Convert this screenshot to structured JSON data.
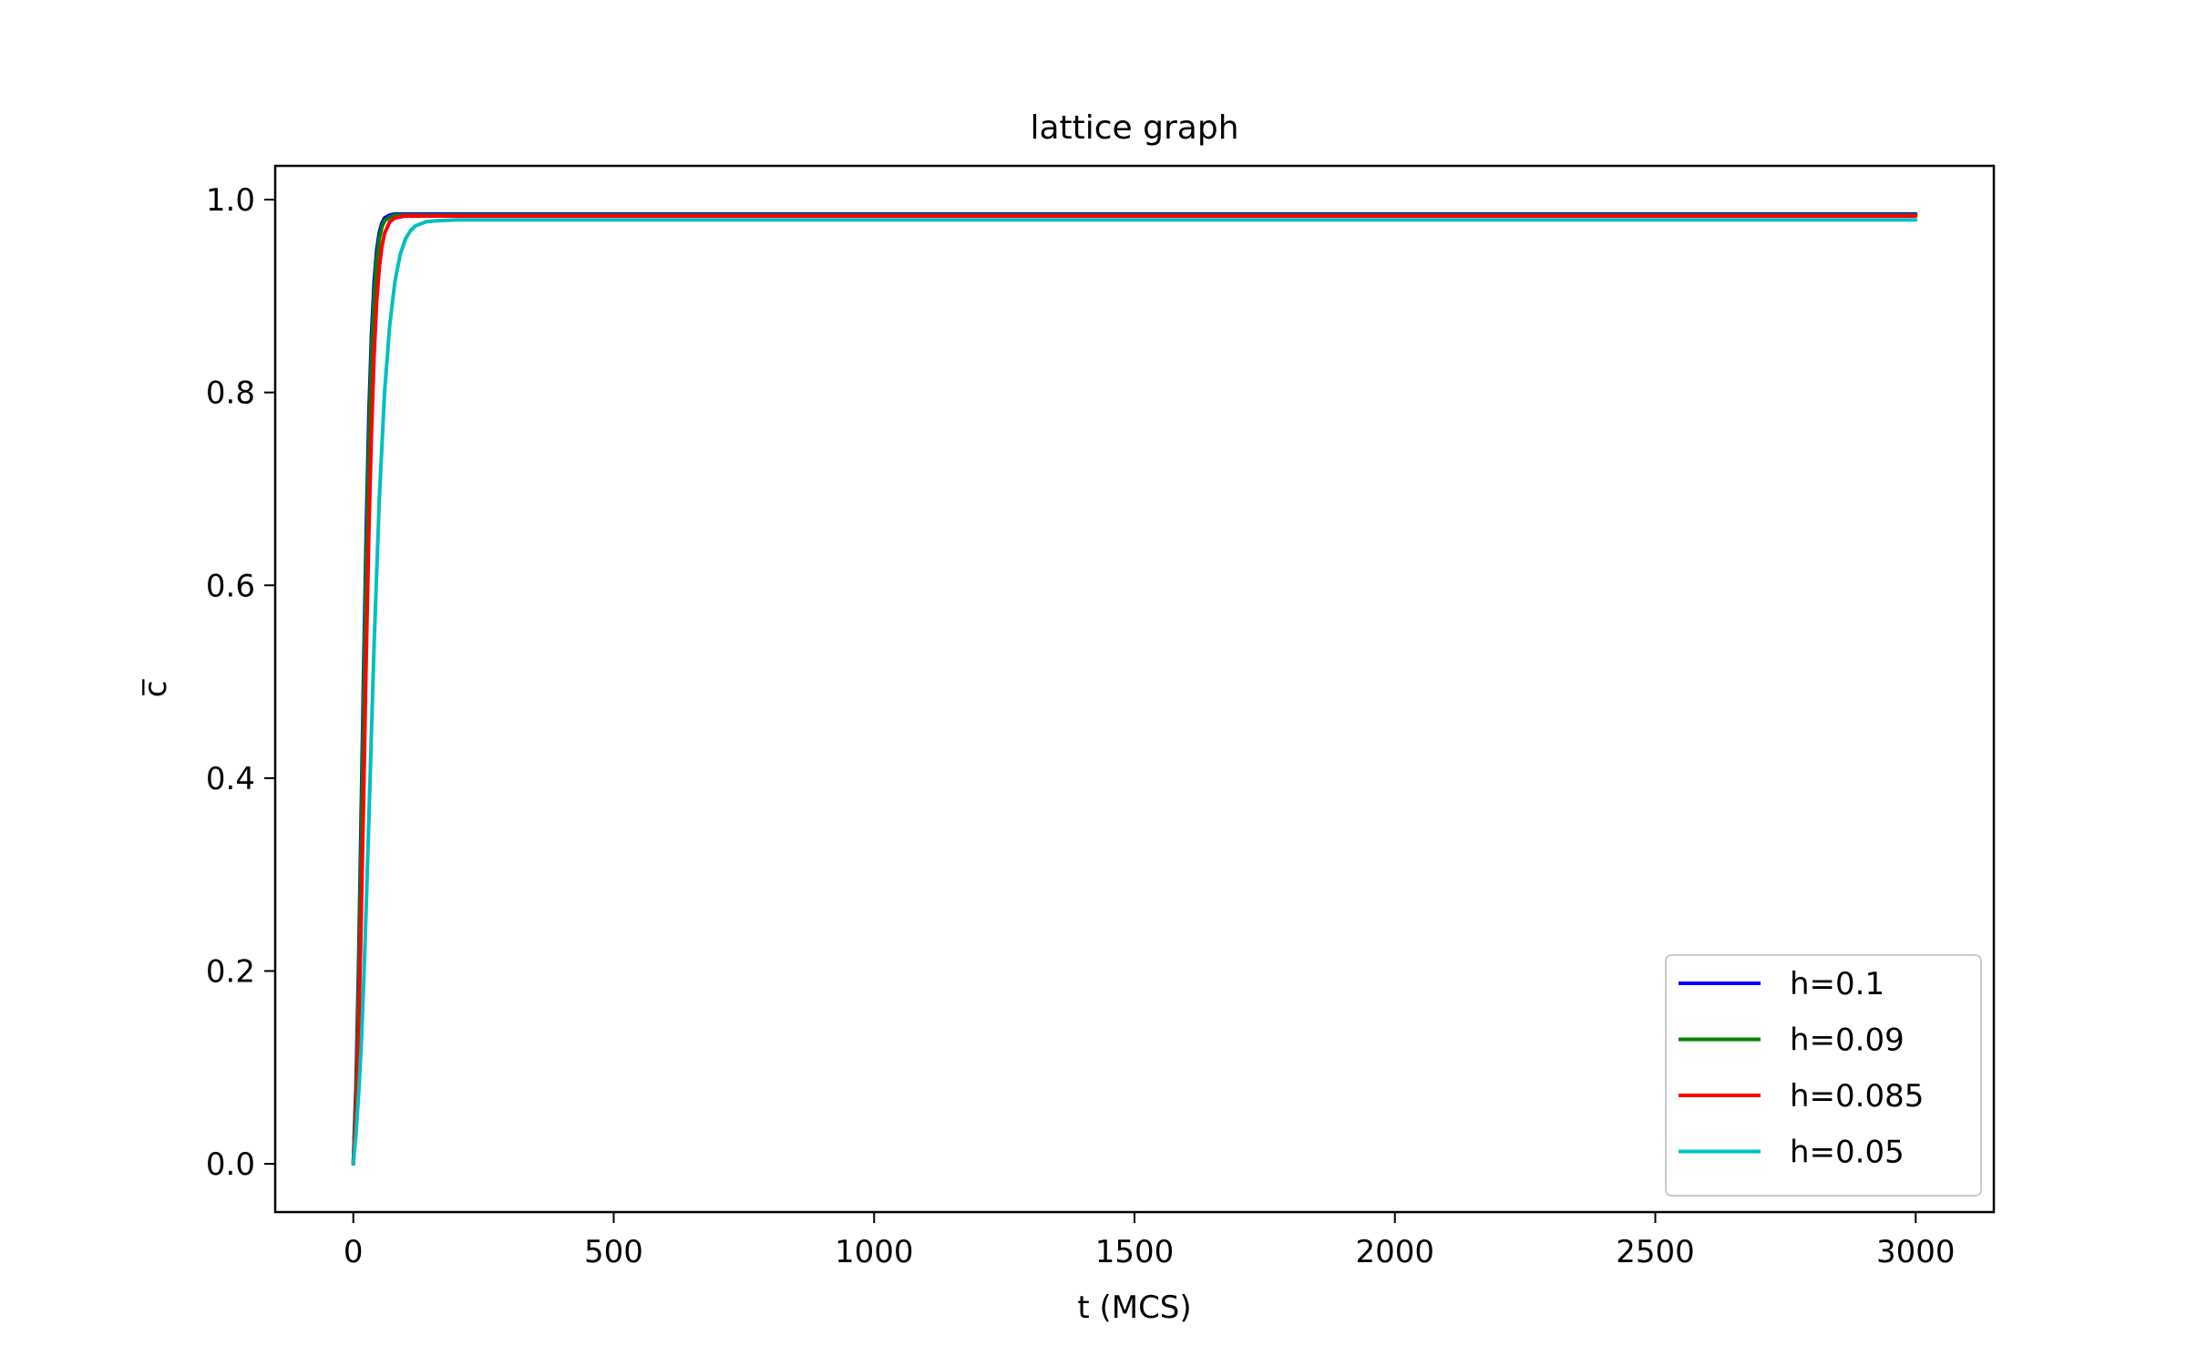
{
  "chart_data": {
    "type": "line",
    "title": "lattice graph",
    "xlabel": "t (MCS)",
    "ylabel": "c̅",
    "xlim": [
      -150,
      3150
    ],
    "ylim": [
      -0.05,
      1.035
    ],
    "xticks": [
      0,
      500,
      1000,
      1500,
      2000,
      2500,
      3000
    ],
    "yticks": [
      0.0,
      0.2,
      0.4,
      0.6,
      0.8,
      1.0
    ],
    "xtick_labels": [
      "0",
      "500",
      "1000",
      "1500",
      "2000",
      "2500",
      "3000"
    ],
    "ytick_labels": [
      "0.0",
      "0.2",
      "0.4",
      "0.6",
      "0.8",
      "1.0"
    ],
    "grid": false,
    "legend_position": "lower-right",
    "series": [
      {
        "name": "h=0.1",
        "color": "#0000ff",
        "x": [
          0,
          5,
          10,
          15,
          20,
          25,
          30,
          35,
          40,
          45,
          50,
          55,
          60,
          70,
          80,
          100,
          150,
          200,
          500,
          1000,
          1500,
          2000,
          2500,
          3000
        ],
        "y": [
          0.0,
          0.08,
          0.2,
          0.36,
          0.52,
          0.66,
          0.78,
          0.86,
          0.915,
          0.948,
          0.966,
          0.976,
          0.981,
          0.984,
          0.985,
          0.985,
          0.985,
          0.985,
          0.985,
          0.985,
          0.985,
          0.985,
          0.985,
          0.985
        ]
      },
      {
        "name": "h=0.09",
        "color": "#008000",
        "x": [
          0,
          5,
          10,
          15,
          20,
          25,
          30,
          35,
          40,
          45,
          50,
          55,
          60,
          70,
          80,
          100,
          150,
          200,
          500,
          1000,
          1500,
          2000,
          2500,
          3000
        ],
        "y": [
          0.0,
          0.07,
          0.18,
          0.33,
          0.49,
          0.63,
          0.75,
          0.84,
          0.9,
          0.938,
          0.96,
          0.972,
          0.978,
          0.982,
          0.984,
          0.984,
          0.984,
          0.984,
          0.984,
          0.984,
          0.984,
          0.984,
          0.984,
          0.984
        ]
      },
      {
        "name": "h=0.085",
        "color": "#ff0000",
        "x": [
          0,
          5,
          10,
          15,
          20,
          25,
          30,
          35,
          40,
          45,
          50,
          55,
          60,
          70,
          80,
          100,
          150,
          200,
          500,
          1000,
          1500,
          2000,
          2500,
          3000
        ],
        "y": [
          0.0,
          0.05,
          0.13,
          0.25,
          0.39,
          0.53,
          0.66,
          0.76,
          0.84,
          0.895,
          0.93,
          0.952,
          0.965,
          0.977,
          0.981,
          0.983,
          0.983,
          0.983,
          0.983,
          0.983,
          0.983,
          0.983,
          0.983,
          0.983
        ]
      },
      {
        "name": "h=0.05",
        "color": "#00bfbf",
        "x": [
          0,
          5,
          10,
          15,
          20,
          25,
          30,
          35,
          40,
          50,
          60,
          70,
          80,
          90,
          100,
          110,
          120,
          140,
          160,
          200,
          500,
          1000,
          1500,
          2000,
          2500,
          3000
        ],
        "y": [
          0.0,
          0.03,
          0.07,
          0.12,
          0.19,
          0.27,
          0.36,
          0.45,
          0.54,
          0.69,
          0.8,
          0.87,
          0.915,
          0.943,
          0.959,
          0.968,
          0.973,
          0.977,
          0.978,
          0.979,
          0.979,
          0.979,
          0.979,
          0.979,
          0.979,
          0.979
        ]
      }
    ]
  }
}
